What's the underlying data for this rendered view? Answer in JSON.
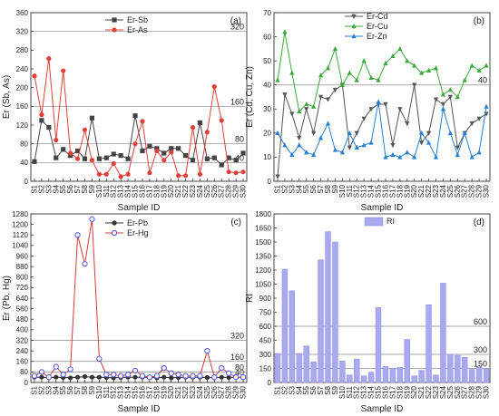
{
  "chart_data": [
    {
      "type": "line",
      "panel_label": "(a)",
      "xlabel": "Sample ID",
      "ylabel": "Er (Sb, As)",
      "ylim": [
        0,
        360
      ],
      "yticks": [
        0,
        40,
        80,
        120,
        160,
        200,
        240,
        280,
        320,
        360
      ],
      "grid": false,
      "legend": "top-center",
      "categories": [
        "S1",
        "S2",
        "S3",
        "S4",
        "S5",
        "S6",
        "S7",
        "S8",
        "S9",
        "S10",
        "S11",
        "S12",
        "S13",
        "S14",
        "S15",
        "S16",
        "S17",
        "S18",
        "S19",
        "S20",
        "S21",
        "S22",
        "S23",
        "S24",
        "S25",
        "S26",
        "S27",
        "S28",
        "S29",
        "S30"
      ],
      "series": [
        {
          "name": "Er-Sb",
          "color": "#444444",
          "marker": "square",
          "values": [
            42,
            130,
            115,
            50,
            68,
            55,
            65,
            48,
            135,
            48,
            50,
            58,
            55,
            48,
            140,
            65,
            75,
            70,
            60,
            70,
            70,
            55,
            45,
            125,
            48,
            50,
            35,
            50,
            45,
            60
          ]
        },
        {
          "name": "Er-As",
          "color": "#e0403a",
          "marker": "circle",
          "values": [
            225,
            142,
            262,
            88,
            236,
            60,
            48,
            110,
            45,
            15,
            15,
            38,
            10,
            15,
            80,
            128,
            18,
            65,
            45,
            62,
            12,
            12,
            115,
            15,
            105,
            202,
            130,
            20,
            18,
            20
          ]
        }
      ],
      "reference_lines": [
        {
          "value": 40,
          "label": "40"
        },
        {
          "value": 80,
          "label": "80"
        },
        {
          "value": 160,
          "label": "160"
        },
        {
          "value": 320,
          "label": "320"
        }
      ]
    },
    {
      "type": "line",
      "panel_label": "(b)",
      "xlabel": "Sample ID",
      "ylabel": "Er (Cd, Cu, Zn)",
      "ylim": [
        0,
        70
      ],
      "yticks": [
        0,
        10,
        20,
        30,
        40,
        50,
        60,
        70
      ],
      "grid": false,
      "legend": "top-center",
      "categories": [
        "S1",
        "S2",
        "S3",
        "S4",
        "S5",
        "S6",
        "S7",
        "S8",
        "S9",
        "S10",
        "S11",
        "S12",
        "S13",
        "S14",
        "S15",
        "S16",
        "S17",
        "S18",
        "S19",
        "S20",
        "S21",
        "S22",
        "S23",
        "S24",
        "S25",
        "S26",
        "S27",
        "S28",
        "S29",
        "S30"
      ],
      "series": [
        {
          "name": "Er-Cd",
          "color": "#555555",
          "marker": "triangle-down",
          "values": [
            2,
            36,
            28,
            18,
            30,
            20,
            35,
            34,
            38,
            40,
            14,
            20,
            26,
            30,
            32,
            32,
            15,
            30,
            24,
            40,
            16,
            20,
            34,
            32,
            35,
            14,
            20,
            24,
            26,
            28
          ]
        },
        {
          "name": "Er-Cu",
          "color": "#3aa83a",
          "marker": "triangle-up",
          "values": [
            42,
            62,
            45,
            29,
            32,
            31,
            44,
            47,
            55,
            40,
            45,
            42,
            50,
            43,
            42,
            49,
            52,
            55,
            50,
            48,
            45,
            46,
            47,
            36,
            38,
            35,
            42,
            48,
            46,
            48
          ]
        },
        {
          "name": "Er-Zn",
          "color": "#2a7fd4",
          "marker": "triangle-up",
          "values": [
            20,
            15,
            11,
            15,
            12,
            11,
            18,
            24,
            13,
            12,
            20,
            14,
            15,
            16,
            33,
            10,
            11,
            10,
            12,
            10,
            20,
            16,
            10,
            30,
            20,
            11,
            20,
            10,
            12,
            31
          ]
        }
      ],
      "reference_lines": [
        {
          "value": 40,
          "label": "40"
        }
      ]
    },
    {
      "type": "line",
      "panel_label": "(c)",
      "xlabel": "Sample ID",
      "ylabel": "Er (Pb, Hg)",
      "ylim": [
        0,
        1280
      ],
      "yticks": [
        0,
        80,
        160,
        240,
        320,
        400,
        480,
        560,
        640,
        720,
        800,
        880,
        960,
        1040,
        1120,
        1200,
        1280
      ],
      "grid": false,
      "legend": "top-center",
      "categories": [
        "S1",
        "S2",
        "S3",
        "S4",
        "S5",
        "S6",
        "S7",
        "S8",
        "S9",
        "S10",
        "S11",
        "S12",
        "S13",
        "S14",
        "S15",
        "S16",
        "S17",
        "S18",
        "S19",
        "S20",
        "S21",
        "S22",
        "S23",
        "S24",
        "S25",
        "S26",
        "S27",
        "S28",
        "S29",
        "S30"
      ],
      "series": [
        {
          "name": "Er-Pb",
          "color": "#333333",
          "marker": "circle",
          "values": [
            40,
            40,
            35,
            40,
            38,
            35,
            40,
            45,
            40,
            40,
            38,
            35,
            38,
            40,
            40,
            40,
            38,
            35,
            40,
            35,
            38,
            40,
            40,
            40,
            38,
            35,
            40,
            38,
            40,
            40
          ]
        },
        {
          "name": "Er-Hg",
          "color": "#d83a3a",
          "marker": "circle-blue-edge",
          "values": [
            50,
            80,
            40,
            120,
            60,
            100,
            1120,
            900,
            1240,
            180,
            60,
            60,
            50,
            60,
            90,
            50,
            40,
            50,
            110,
            70,
            60,
            50,
            50,
            50,
            240,
            40,
            110,
            70,
            40,
            40
          ]
        }
      ],
      "reference_lines": [
        {
          "value": 40,
          "label": "40"
        },
        {
          "value": 80,
          "label": "80"
        },
        {
          "value": 160,
          "label": "160"
        },
        {
          "value": 320,
          "label": "320"
        }
      ]
    },
    {
      "type": "bar",
      "panel_label": "(d)",
      "xlabel": "Sample ID",
      "ylabel": "RI",
      "ylim": [
        0,
        1800
      ],
      "yticks": [
        0,
        150,
        300,
        450,
        600,
        750,
        900,
        1050,
        1200,
        1350,
        1500,
        1650,
        1800
      ],
      "grid": false,
      "legend": "top-center",
      "categories": [
        "S1",
        "S2",
        "S3",
        "S4",
        "S5",
        "S6",
        "S7",
        "S8",
        "S9",
        "S10",
        "S11",
        "S12",
        "S13",
        "S14",
        "S15",
        "S16",
        "S17",
        "S18",
        "S19",
        "S20",
        "S21",
        "S22",
        "S23",
        "S24",
        "S25",
        "S26",
        "S27",
        "S28",
        "S29",
        "S30"
      ],
      "series": [
        {
          "name": "RI",
          "color": "#a9a9f0",
          "values": [
            310,
            1210,
            980,
            310,
            390,
            220,
            1310,
            1610,
            1500,
            230,
            80,
            250,
            70,
            110,
            800,
            170,
            150,
            160,
            460,
            70,
            130,
            830,
            80,
            1060,
            300,
            290,
            270,
            140,
            165,
            150
          ]
        }
      ],
      "reference_lines": [
        {
          "value": 150,
          "label": "150"
        },
        {
          "value": 300,
          "label": "300"
        },
        {
          "value": 600,
          "label": "600"
        }
      ]
    }
  ]
}
